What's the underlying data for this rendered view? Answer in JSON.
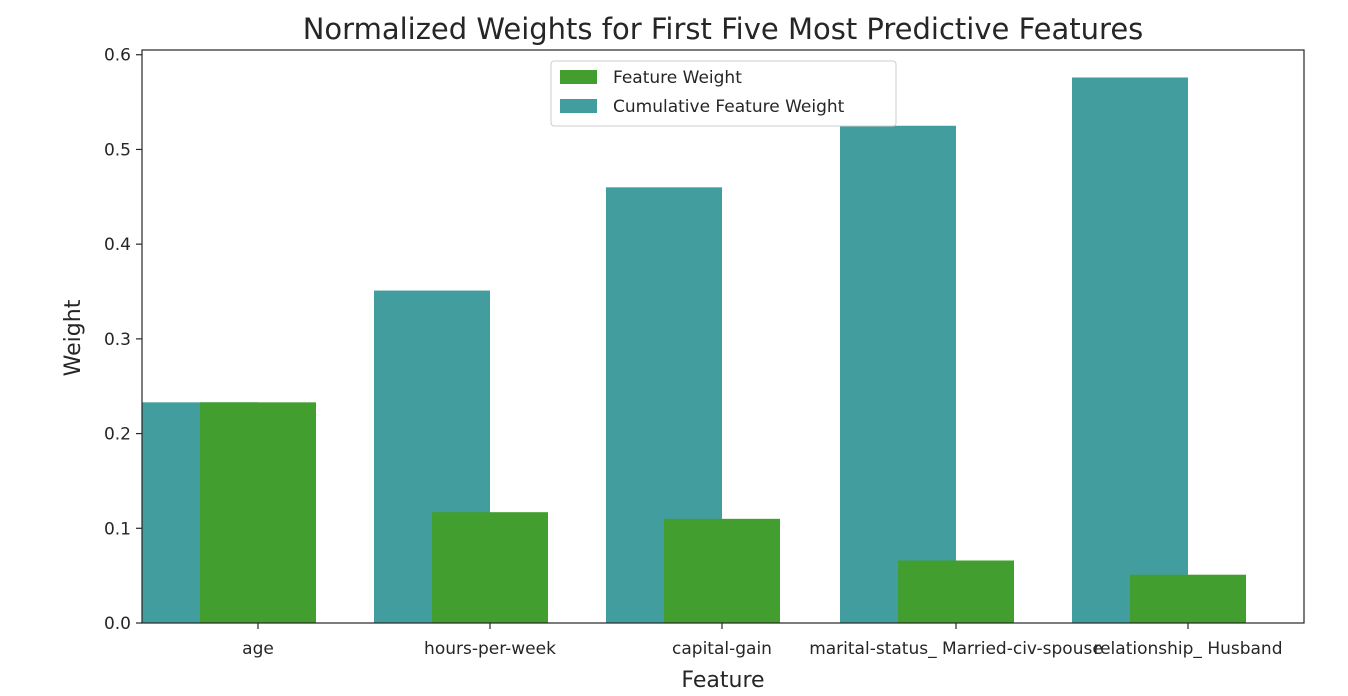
{
  "chart_data": {
    "type": "bar",
    "title": "Normalized Weights for First Five Most Predictive Features",
    "xlabel": "Feature",
    "ylabel": "Weight",
    "ylim": [
      0,
      0.605
    ],
    "yticks": [
      "0.0",
      "0.1",
      "0.2",
      "0.3",
      "0.4",
      "0.5",
      "0.6"
    ],
    "categories": [
      "age",
      "hours-per-week",
      "capital-gain",
      "marital-status_ Married-civ-spouse",
      "relationship_ Husband"
    ],
    "series": [
      {
        "name": "Feature Weight",
        "color": "#429e2e",
        "values": [
          0.233,
          0.117,
          0.11,
          0.066,
          0.051
        ]
      },
      {
        "name": "Cumulative Feature Weight",
        "color": "#429e9e",
        "values": [
          0.233,
          0.351,
          0.46,
          0.525,
          0.576
        ]
      }
    ],
    "legend": "upper-center",
    "grid": false
  }
}
